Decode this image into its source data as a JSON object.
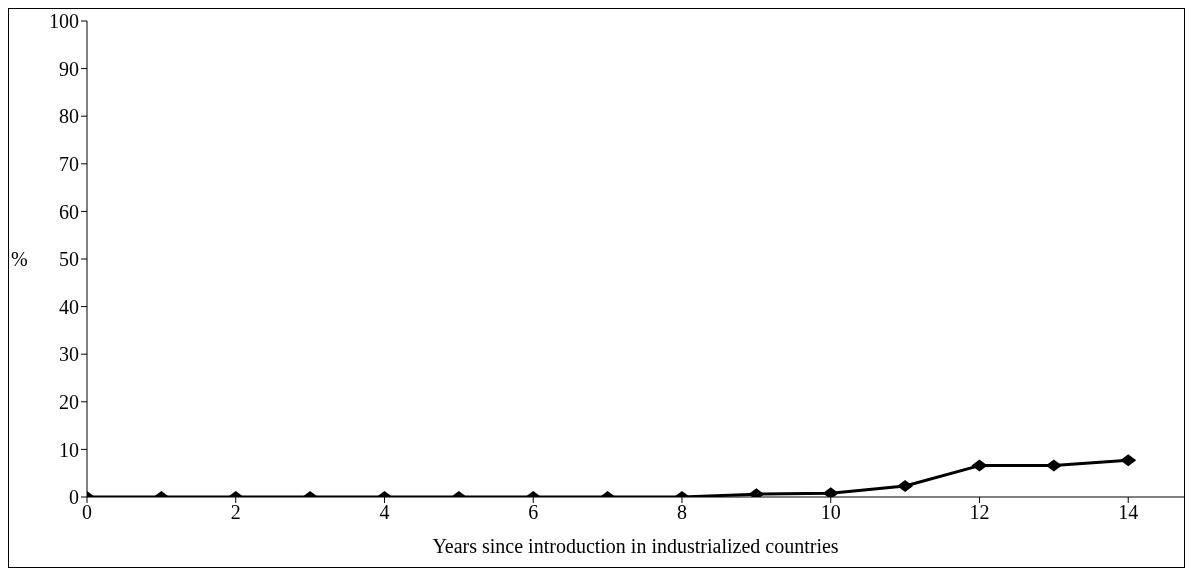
{
  "chart_data": {
    "type": "line",
    "xlabel": "Years since introduction in industrialized countries",
    "ylabel": "%",
    "x": [
      0,
      1,
      2,
      3,
      4,
      5,
      6,
      7,
      8,
      9,
      10,
      11,
      12,
      13,
      14
    ],
    "series": [
      {
        "color": "#000000",
        "values": [
          0,
          0,
          0,
          0,
          0,
          0,
          0,
          0,
          0,
          0.6,
          0.8,
          2.3,
          6.6,
          6.6,
          7.7
        ]
      }
    ],
    "xlim": [
      0,
      14.75
    ],
    "xticks": [
      0,
      2,
      4,
      6,
      8,
      10,
      12,
      14
    ],
    "ylim": [
      0,
      100
    ],
    "yticks": [
      0,
      10,
      20,
      30,
      40,
      50,
      60,
      70,
      80,
      90,
      100
    ],
    "grid": false,
    "marker": "diamond",
    "line_style": "solid"
  }
}
